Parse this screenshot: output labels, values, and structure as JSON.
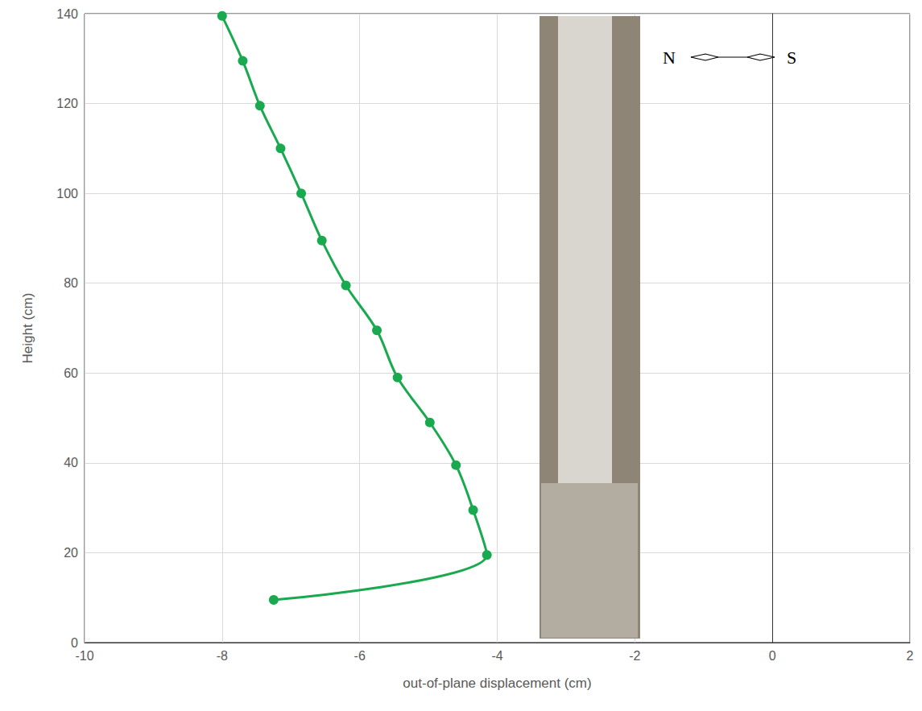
{
  "chart_data": {
    "type": "line",
    "x_label": "out-of-plane displacement (cm)",
    "y_label": "Height (cm)",
    "x": [
      -8.0,
      -7.7,
      -7.45,
      -7.15,
      -6.85,
      -6.55,
      -6.2,
      -5.75,
      -5.45,
      -4.98,
      -4.6,
      -4.35,
      -4.15,
      -7.25
    ],
    "values": [
      139.5,
      129.5,
      119.5,
      110,
      100,
      89.5,
      79.5,
      69.5,
      59,
      49,
      39.5,
      29.5,
      19.5,
      9.5
    ],
    "color": "#19a94f",
    "marker": "circle",
    "line_style": "solid",
    "xlim": [
      -10,
      2
    ],
    "xticks": [
      -10,
      -8,
      -6,
      -4,
      -2,
      0,
      2
    ],
    "ylim": [
      0,
      140
    ],
    "yticks": [
      0,
      20,
      40,
      60,
      80,
      100,
      120,
      140
    ],
    "grid": true,
    "annotations": [
      "N",
      "S"
    ]
  }
}
